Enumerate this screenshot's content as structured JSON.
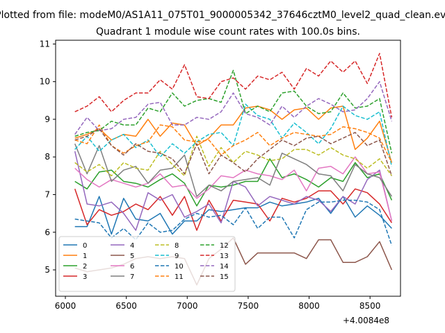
{
  "chart_data": {
    "type": "line",
    "suptitle": "Plotted from file: modeM0/AS1A11_075T01_9000005342_37646cztM0_level2_quad_clean.evt",
    "title": "Quadrant 1 module wise count rates with 100.0s bins.",
    "xlabel": "",
    "ylabel": "",
    "x_offset_label": "+4.0084e8",
    "xlim": [
      5920,
      8750
    ],
    "ylim": [
      4.3,
      11.1
    ],
    "x_ticks": [
      6000,
      6500,
      7000,
      7500,
      8000,
      8500
    ],
    "y_ticks": [
      5,
      6,
      7,
      8,
      9,
      10,
      11
    ],
    "grid": false,
    "legend": {
      "placement": "lower-left",
      "columns": 4
    },
    "x": [
      6078,
      6178,
      6278,
      6378,
      6478,
      6578,
      6678,
      6778,
      6878,
      6978,
      7078,
      7178,
      7278,
      7378,
      7478,
      7578,
      7678,
      7778,
      7878,
      7978,
      8078,
      8178,
      8278,
      8378,
      8478,
      8578,
      8678
    ],
    "series": [
      {
        "name": "0",
        "color": "#1f77b4",
        "dash": "solid",
        "values": [
          6.15,
          6.15,
          6.95,
          5.95,
          6.9,
          6.35,
          6.3,
          6.5,
          5.95,
          6.3,
          6.3,
          6.6,
          6.55,
          6.6,
          6.65,
          6.65,
          6.8,
          6.7,
          6.75,
          6.8,
          6.9,
          6.5,
          6.95,
          6.4,
          6.7,
          6.45,
          6.1
        ]
      },
      {
        "name": "1",
        "color": "#ff7f0e",
        "dash": "solid",
        "values": [
          8.5,
          8.6,
          8.75,
          8.45,
          8.6,
          8.55,
          9.0,
          8.55,
          8.9,
          8.85,
          8.3,
          8.5,
          8.85,
          8.85,
          9.3,
          9.35,
          9.25,
          9.0,
          9.25,
          9.3,
          9.0,
          9.3,
          9.35,
          8.2,
          8.5,
          8.95,
          7.85
        ]
      },
      {
        "name": "2",
        "color": "#2ca02c",
        "dash": "solid",
        "values": [
          7.35,
          7.15,
          7.6,
          7.65,
          7.35,
          7.3,
          7.2,
          7.4,
          7.55,
          7.3,
          6.7,
          7.25,
          7.2,
          7.25,
          7.35,
          7.35,
          7.95,
          7.45,
          7.55,
          7.4,
          7.2,
          7.45,
          7.35,
          7.85,
          7.45,
          7.55,
          6.85
        ]
      },
      {
        "name": "3",
        "color": "#d62728",
        "dash": "solid",
        "values": [
          7.15,
          6.2,
          6.6,
          6.45,
          6.55,
          6.75,
          6.6,
          6.95,
          6.45,
          6.95,
          6.05,
          6.85,
          6.3,
          6.85,
          6.8,
          6.75,
          6.3,
          6.9,
          6.8,
          6.9,
          7.1,
          7.1,
          6.75,
          7.15,
          7.05,
          6.75,
          6.25
        ]
      },
      {
        "name": "4",
        "color": "#9467bd",
        "dash": "solid",
        "values": [
          8.15,
          6.75,
          6.7,
          6.8,
          6.5,
          6.05,
          7.05,
          6.85,
          7.0,
          6.4,
          6.55,
          6.75,
          6.25,
          7.35,
          7.2,
          6.7,
          6.95,
          6.85,
          6.75,
          6.95,
          6.85,
          6.55,
          6.95,
          6.75,
          7.4,
          7.65,
          6.3
        ]
      },
      {
        "name": "5",
        "color": "#8c564b",
        "dash": "solid",
        "values": [
          5.05,
          4.95,
          5.0,
          5.05,
          5.15,
          5.3,
          5.35,
          5.3,
          5.35,
          5.3,
          4.6,
          5.3,
          5.55,
          5.85,
          5.15,
          5.45,
          5.45,
          5.45,
          5.45,
          5.3,
          5.8,
          5.8,
          5.2,
          5.2,
          5.35,
          5.75,
          5.0
        ]
      },
      {
        "name": "6",
        "color": "#e377c2",
        "dash": "solid",
        "values": [
          7.7,
          7.4,
          7.2,
          7.4,
          7.3,
          7.2,
          7.3,
          7.55,
          7.2,
          7.25,
          6.9,
          7.15,
          7.5,
          7.45,
          7.65,
          7.55,
          7.5,
          7.4,
          7.65,
          7.1,
          7.7,
          7.75,
          7.55,
          8.0,
          7.55,
          7.6,
          6.3
        ]
      },
      {
        "name": "7",
        "color": "#7f7f7f",
        "dash": "solid",
        "values": [
          8.35,
          7.55,
          8.3,
          7.35,
          7.65,
          7.75,
          7.3,
          7.65,
          7.7,
          8.05,
          6.95,
          7.25,
          7.1,
          7.35,
          7.4,
          7.45,
          7.25,
          8.1,
          7.95,
          7.8,
          7.55,
          7.5,
          7.1,
          7.8,
          7.55,
          7.45,
          6.95
        ]
      },
      {
        "name": "8",
        "color": "#bcbd22",
        "dash": "dashed",
        "values": [
          7.85,
          7.6,
          7.8,
          7.5,
          7.85,
          7.7,
          7.65,
          8.15,
          7.8,
          7.5,
          8.55,
          7.75,
          8.25,
          7.85,
          8.15,
          8.05,
          7.9,
          7.95,
          8.2,
          8.2,
          8.05,
          8.25,
          8.05,
          7.95,
          7.7,
          7.95,
          7.5
        ]
      },
      {
        "name": "9",
        "color": "#17becf",
        "dash": "dashed",
        "values": [
          8.2,
          8.55,
          8.15,
          8.45,
          8.6,
          8.25,
          8.45,
          8.0,
          8.35,
          8.1,
          8.4,
          8.6,
          8.65,
          8.3,
          9.4,
          9.1,
          9.0,
          8.5,
          8.9,
          8.65,
          8.35,
          8.75,
          9.35,
          9.1,
          9.0,
          9.2,
          7.75
        ]
      },
      {
        "name": "10",
        "color": "#1f77b4",
        "dash": "dashed",
        "values": [
          6.35,
          6.3,
          6.25,
          5.85,
          6.1,
          5.8,
          6.25,
          6.0,
          6.05,
          6.35,
          6.5,
          6.4,
          6.45,
          6.2,
          6.65,
          6.1,
          6.4,
          6.4,
          5.85,
          6.6,
          6.8,
          6.8,
          6.85,
          6.85,
          6.8,
          6.6,
          5.65
        ]
      },
      {
        "name": "11",
        "color": "#ff7f0e",
        "dash": "dashed",
        "values": [
          8.45,
          8.35,
          8.85,
          8.3,
          8.1,
          8.3,
          8.4,
          8.85,
          8.8,
          8.45,
          8.4,
          8.45,
          8.05,
          8.3,
          8.45,
          8.65,
          8.3,
          8.5,
          8.65,
          8.6,
          8.55,
          8.6,
          8.8,
          8.75,
          8.65,
          8.5,
          7.85
        ]
      },
      {
        "name": "12",
        "color": "#2ca02c",
        "dash": "dashed",
        "values": [
          8.55,
          8.65,
          8.7,
          8.95,
          8.85,
          8.85,
          9.3,
          9.2,
          9.7,
          9.35,
          9.5,
          9.55,
          9.45,
          10.3,
          9.15,
          9.35,
          9.2,
          9.7,
          9.75,
          9.35,
          9.15,
          9.2,
          9.7,
          9.3,
          9.35,
          9.55,
          8.1
        ]
      },
      {
        "name": "13",
        "color": "#d62728",
        "dash": "dashed",
        "values": [
          9.2,
          9.35,
          9.6,
          9.2,
          9.5,
          9.7,
          9.7,
          10.05,
          9.8,
          10.45,
          9.6,
          9.55,
          10.0,
          10.1,
          9.8,
          10.15,
          10.05,
          10.25,
          9.8,
          10.35,
          10.15,
          10.55,
          10.25,
          10.55,
          9.95,
          10.75,
          9.05
        ]
      },
      {
        "name": "14",
        "color": "#9467bd",
        "dash": "dashed",
        "values": [
          8.6,
          9.05,
          8.7,
          8.75,
          9.0,
          9.05,
          9.4,
          9.45,
          8.85,
          8.85,
          9.05,
          9.0,
          9.2,
          9.7,
          9.15,
          9.05,
          8.85,
          9.35,
          9.05,
          9.35,
          9.55,
          9.4,
          9.2,
          9.25,
          9.55,
          10.0,
          8.95
        ]
      },
      {
        "name": "15",
        "color": "#8c564b",
        "dash": "dashed",
        "values": [
          8.45,
          8.55,
          8.75,
          8.3,
          8.05,
          8.35,
          8.15,
          8.1,
          7.95,
          7.55,
          8.35,
          7.55,
          8.05,
          7.85,
          7.6,
          7.95,
          8.2,
          8.45,
          8.3,
          8.5,
          8.55,
          8.35,
          8.5,
          8.65,
          8.3,
          8.45,
          7.5
        ]
      }
    ]
  }
}
